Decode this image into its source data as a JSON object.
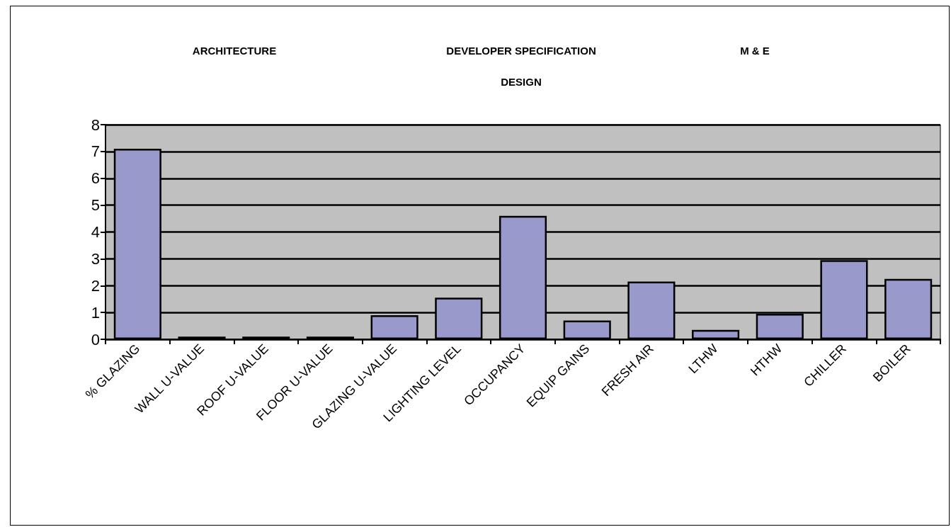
{
  "chart_data": {
    "type": "bar",
    "annotations": [
      "ARCHITECTURE",
      "DEVELOPER SPECIFICATION DESIGN",
      "M & E"
    ],
    "categories": [
      "% GLAZING",
      "WALL U-VALUE",
      "ROOF U-VALUE",
      "FLOOR U-VALUE",
      "GLAZING U-VALUE",
      "LIGHTING LEVEL",
      "OCCUPANCY",
      "EQUIP GAINS",
      "FRESH AIR",
      "LTHW",
      "HTHW",
      "CHILLER",
      "BOILER"
    ],
    "values": [
      7.1,
      0.1,
      0.1,
      0.1,
      0.9,
      1.55,
      4.6,
      0.7,
      2.15,
      0.35,
      0.95,
      2.95,
      2.25
    ],
    "color": "#9999cc",
    "ylim": [
      0,
      8
    ],
    "yticks": [
      0,
      1,
      2,
      3,
      4,
      5,
      6,
      7,
      8
    ],
    "grid": "y"
  }
}
